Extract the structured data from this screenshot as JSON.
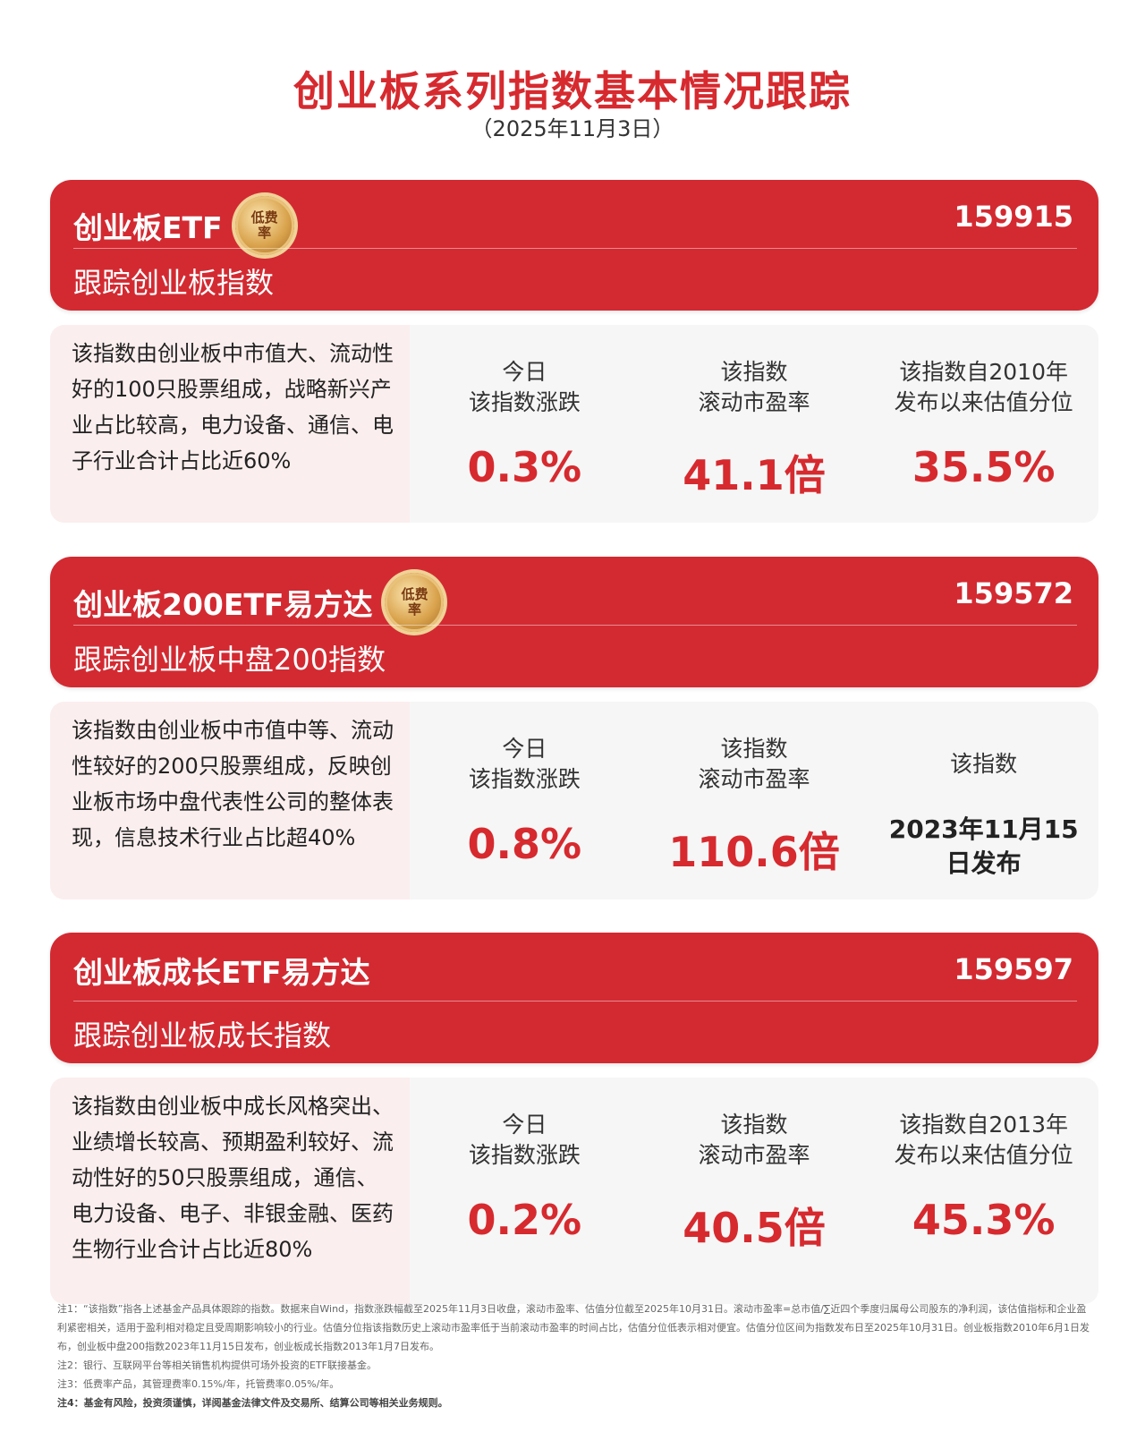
{
  "title": "创业板系列指数基本情况跟踪",
  "subtitle": "（2025年11月3日）",
  "badge_text": "低费率",
  "colors": {
    "brand_red": "#d32a32",
    "value_red": "#d62a2f"
  },
  "cards": [
    {
      "name": "创业板ETF",
      "code": "159915",
      "track": "跟踪创业板指数",
      "badge": true,
      "desc": "该指数由创业板中市值大、流动性好的100只股票组成，战略新兴产业占比较高，电力设备、通信、电子行业合计占比近60%",
      "cols": [
        {
          "label1": "今日",
          "label2": "该指数涨跌",
          "value": "0.3%"
        },
        {
          "label1": "该指数",
          "label2": "滚动市盈率",
          "value": "41.1倍"
        },
        {
          "label1": "该指数自2010年",
          "label2": "发布以来估值分位",
          "value": "35.5%"
        }
      ]
    },
    {
      "name": "创业板200ETF易方达",
      "code": "159572",
      "track": "跟踪创业板中盘200指数",
      "badge": true,
      "desc": "该指数由创业板中市值中等、流动性较好的200只股票组成，反映创业板市场中盘代表性公司的整体表现，信息技术行业占比超40%",
      "cols": [
        {
          "label1": "今日",
          "label2": "该指数涨跌",
          "value": "0.8%"
        },
        {
          "label1": "该指数",
          "label2": "滚动市盈率",
          "value": "110.6倍"
        },
        {
          "label1": "该指数",
          "label2": "",
          "value": "2023年11月15日发布"
        }
      ]
    },
    {
      "name": "创业板成长ETF易方达",
      "code": "159597",
      "track": "跟踪创业板成长指数",
      "badge": false,
      "desc": "该指数由创业板中成长风格突出、业绩增长较高、预期盈利较好、流动性好的50只股票组成，通信、电力设备、电子、非银金融、医药生物行业合计占比近80%",
      "cols": [
        {
          "label1": "今日",
          "label2": "该指数涨跌",
          "value": "0.2%"
        },
        {
          "label1": "该指数",
          "label2": "滚动市盈率",
          "value": "40.5倍"
        },
        {
          "label1": "该指数自2013年",
          "label2": "发布以来估值分位",
          "value": "45.3%"
        }
      ]
    }
  ],
  "notes": [
    "注1：“该指数”指各上述基金产品具体跟踪的指数。数据来自Wind，指数涨跌幅截至2025年11月3日收盘，滚动市盈率、估值分位截至2025年10月31日。滚动市盈率=总市值/∑近四个季度归属母公司股东的净利润，该估值指标和企业盈利紧密相关，适用于盈利相对稳定且受周期影响较小的行业。估值分位指该指数历史上滚动市盈率低于当前滚动市盈率的时间占比，估值分位低表示相对便宜。估值分位区间为指数发布日至2025年10月31日。创业板指数2010年6月1日发布，创业板中盘200指数2023年11月15日发布，创业板成长指数2013年1月7日发布。",
    "注2：银行、互联网平台等相关销售机构提供可场外投资的ETF联接基金。",
    "注3：低费率产品，其管理费率0.15%/年，托管费率0.05%/年。",
    "注4：基金有风险，投资须谨慎，详阅基金法律文件及交易所、结算公司等相关业务规则。"
  ]
}
